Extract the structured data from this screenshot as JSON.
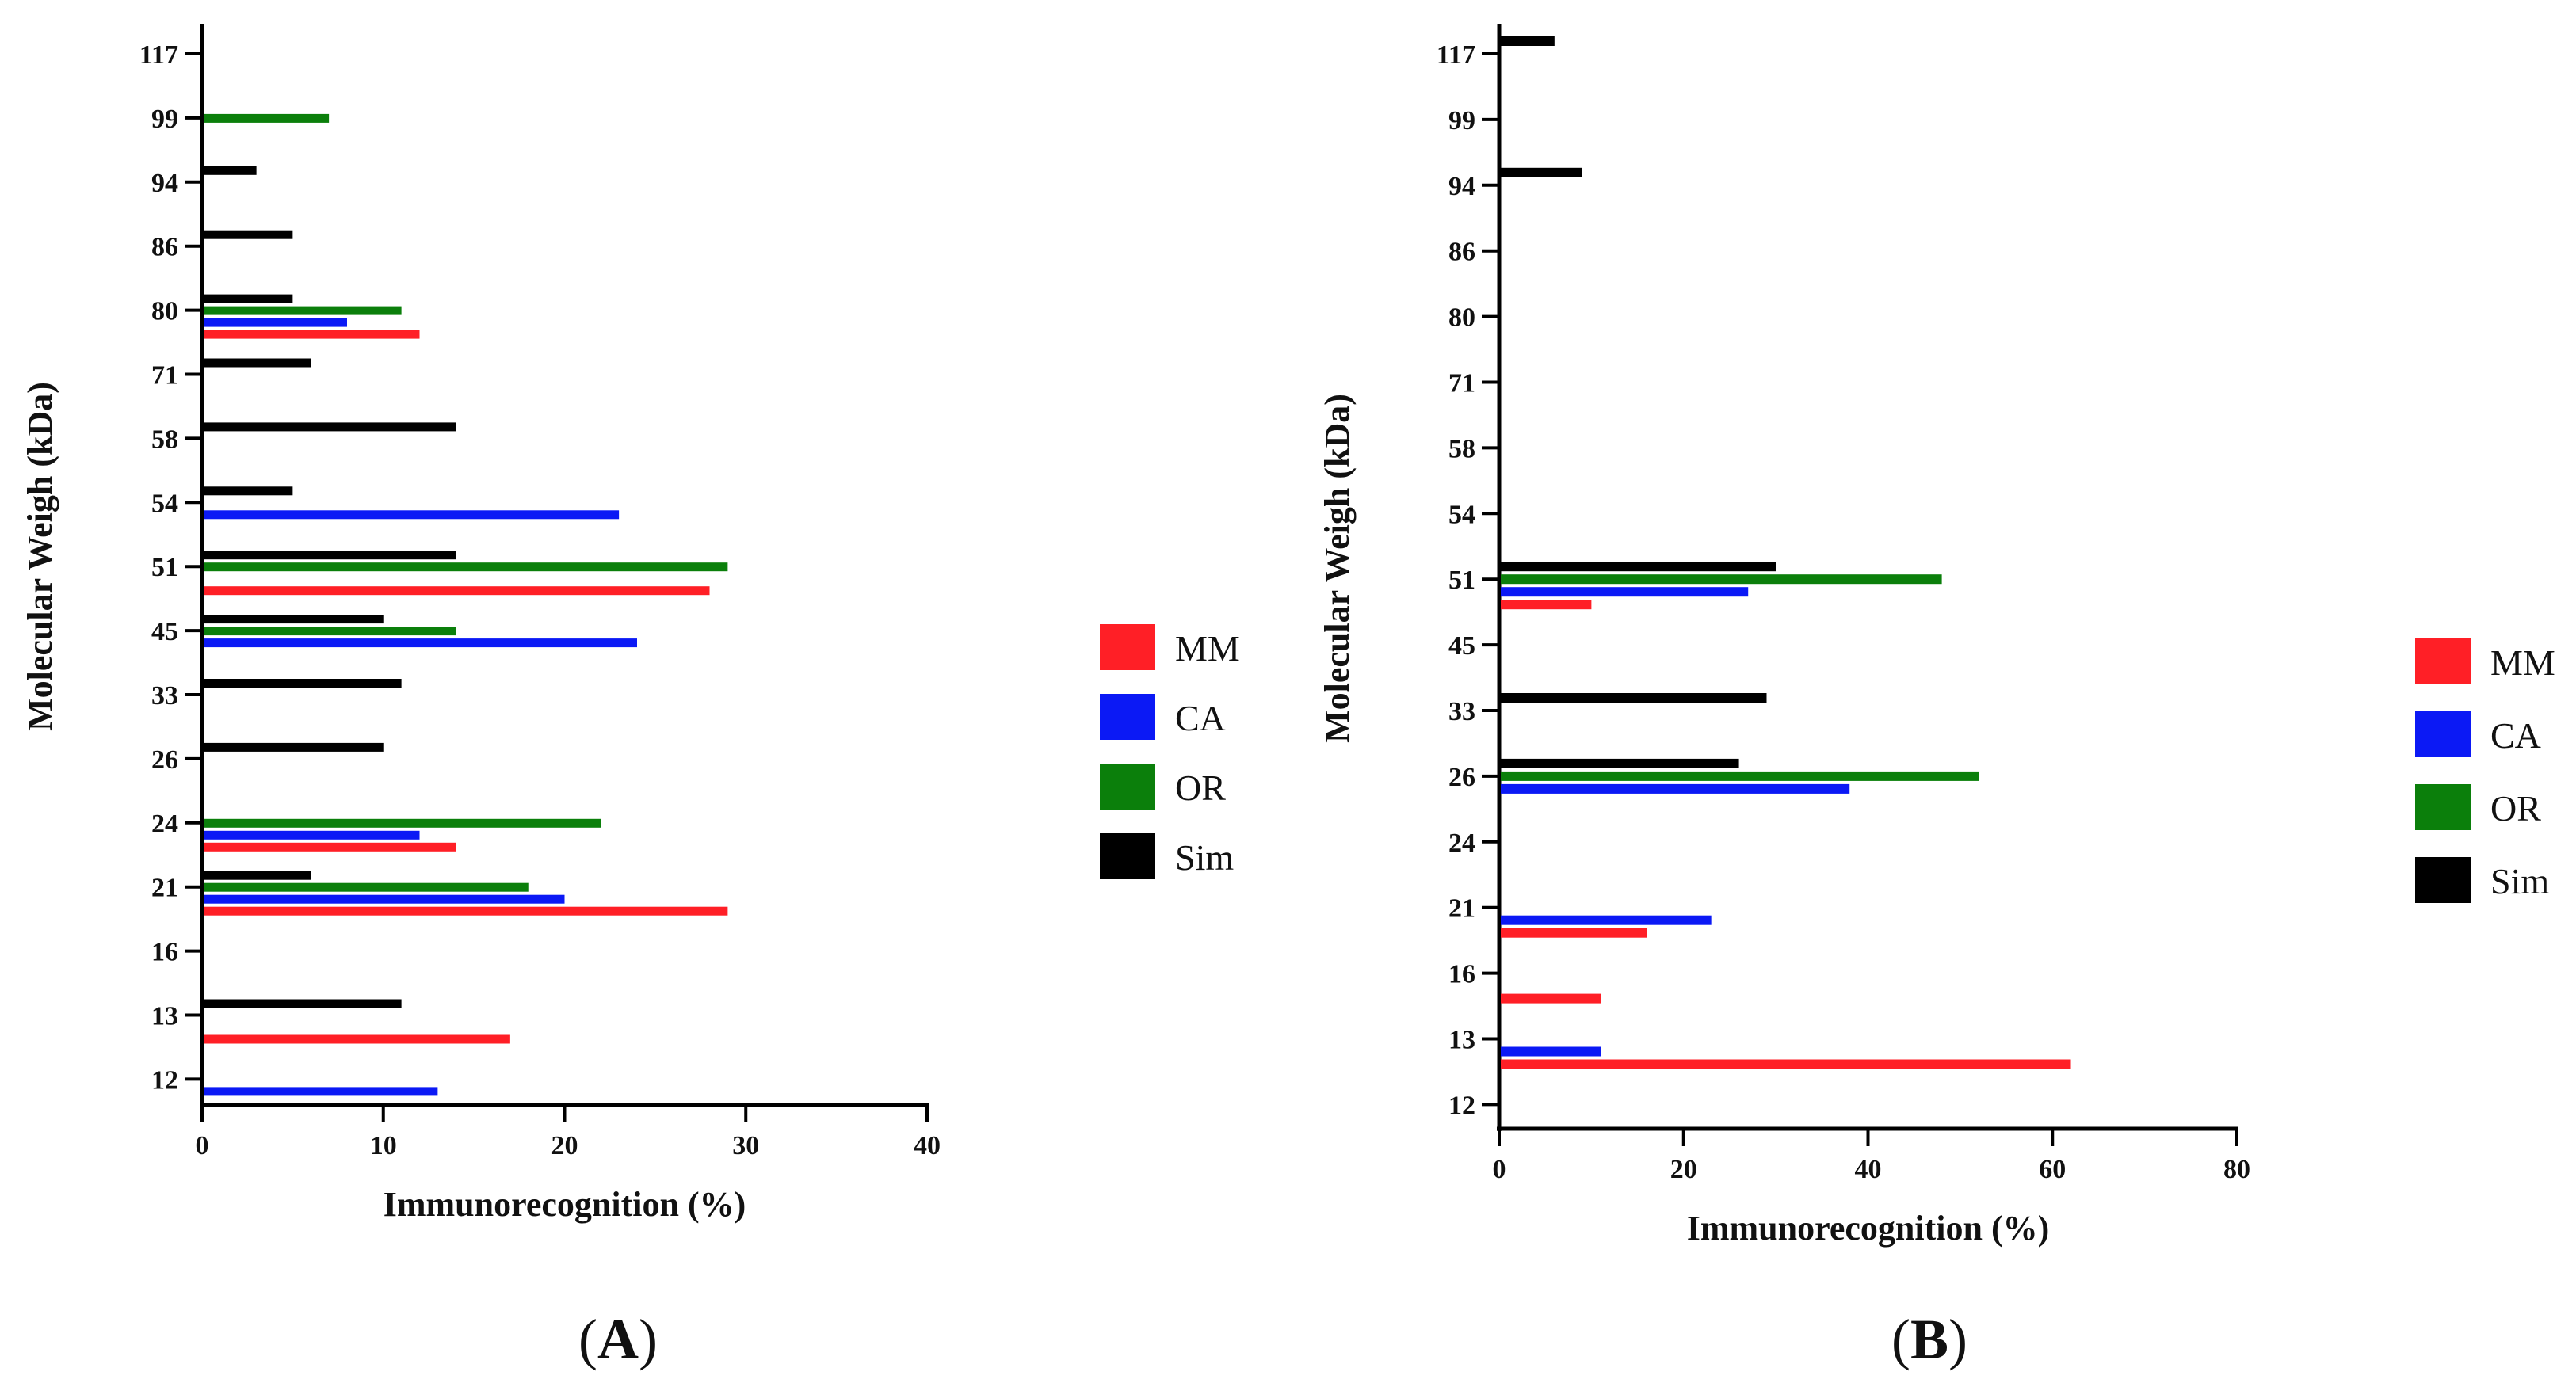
{
  "series_colors": {
    "MM": "#ff1f26",
    "CA": "#0b19f5",
    "OR": "#0b7f0b",
    "Sim": "#000000"
  },
  "chart_data": [
    {
      "type": "bar",
      "orientation": "horizontal",
      "panel": {
        "open": "(",
        "letter": "A",
        "close": ")"
      },
      "xlabel": "Immunorecognition (%)",
      "ylabel": "Molecular Weigh (kDa)",
      "xlim": [
        0,
        40
      ],
      "xticks": [
        0,
        10,
        20,
        30,
        40
      ],
      "categories": [
        "117",
        "99",
        "94",
        "86",
        "80",
        "71",
        "58",
        "54",
        "51",
        "45",
        "33",
        "26",
        "24",
        "21",
        "16",
        "13",
        "12"
      ],
      "series": [
        {
          "name": "MM",
          "values": [
            null,
            null,
            null,
            null,
            12,
            null,
            null,
            null,
            28,
            null,
            null,
            null,
            14,
            29,
            null,
            17,
            null
          ]
        },
        {
          "name": "CA",
          "values": [
            null,
            null,
            null,
            null,
            8,
            null,
            null,
            23,
            null,
            24,
            null,
            null,
            12,
            20,
            null,
            null,
            13
          ]
        },
        {
          "name": "OR",
          "values": [
            null,
            7,
            null,
            null,
            11,
            null,
            null,
            null,
            29,
            14,
            null,
            null,
            22,
            18,
            null,
            null,
            null
          ]
        },
        {
          "name": "Sim",
          "values": [
            null,
            null,
            3,
            5,
            5,
            6,
            14,
            5,
            14,
            10,
            11,
            10,
            null,
            6,
            null,
            11,
            null
          ]
        }
      ],
      "legend": [
        "MM",
        "CA",
        "OR",
        "Sim"
      ],
      "legend_position": "right"
    },
    {
      "type": "bar",
      "orientation": "horizontal",
      "panel": {
        "open": "(",
        "letter": "B",
        "close": ")"
      },
      "xlabel": "Immunorecognition (%)",
      "ylabel": "Molecular Weigh (kDa)",
      "xlim": [
        0,
        80
      ],
      "xticks": [
        0,
        20,
        40,
        60,
        80
      ],
      "categories": [
        "117",
        "99",
        "94",
        "86",
        "80",
        "71",
        "58",
        "54",
        "51",
        "45",
        "33",
        "26",
        "24",
        "21",
        "16",
        "13",
        "12"
      ],
      "series": [
        {
          "name": "MM",
          "values": [
            null,
            null,
            null,
            null,
            null,
            null,
            null,
            null,
            10,
            null,
            null,
            null,
            null,
            16,
            11,
            62,
            null
          ]
        },
        {
          "name": "CA",
          "values": [
            null,
            null,
            null,
            null,
            null,
            null,
            null,
            null,
            27,
            null,
            null,
            38,
            null,
            23,
            null,
            11,
            null
          ]
        },
        {
          "name": "OR",
          "values": [
            null,
            null,
            null,
            null,
            null,
            null,
            null,
            null,
            48,
            null,
            null,
            52,
            null,
            null,
            null,
            null,
            null
          ]
        },
        {
          "name": "Sim",
          "values": [
            6,
            null,
            9,
            null,
            null,
            null,
            null,
            null,
            30,
            null,
            29,
            26,
            null,
            null,
            null,
            null,
            null
          ]
        }
      ],
      "legend": [
        "MM",
        "CA",
        "OR",
        "Sim"
      ],
      "legend_position": "right"
    }
  ]
}
